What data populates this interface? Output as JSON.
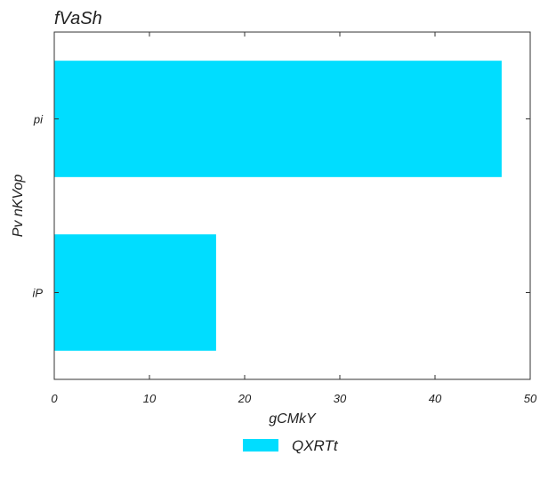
{
  "chart_data": {
    "type": "bar",
    "orientation": "horizontal",
    "title": "fVaSh",
    "xlabel": "gCMkY",
    "ylabel": "Pv nKVop",
    "categories": [
      "pi",
      "iP"
    ],
    "series": [
      {
        "name": "QXRTt",
        "values": [
          47,
          17
        ],
        "color": "#00DDFF"
      }
    ],
    "xlim": [
      0,
      50
    ],
    "xticks": [
      0,
      10,
      20,
      30,
      40,
      50
    ],
    "grid": false,
    "legend_position": "bottom-center"
  }
}
